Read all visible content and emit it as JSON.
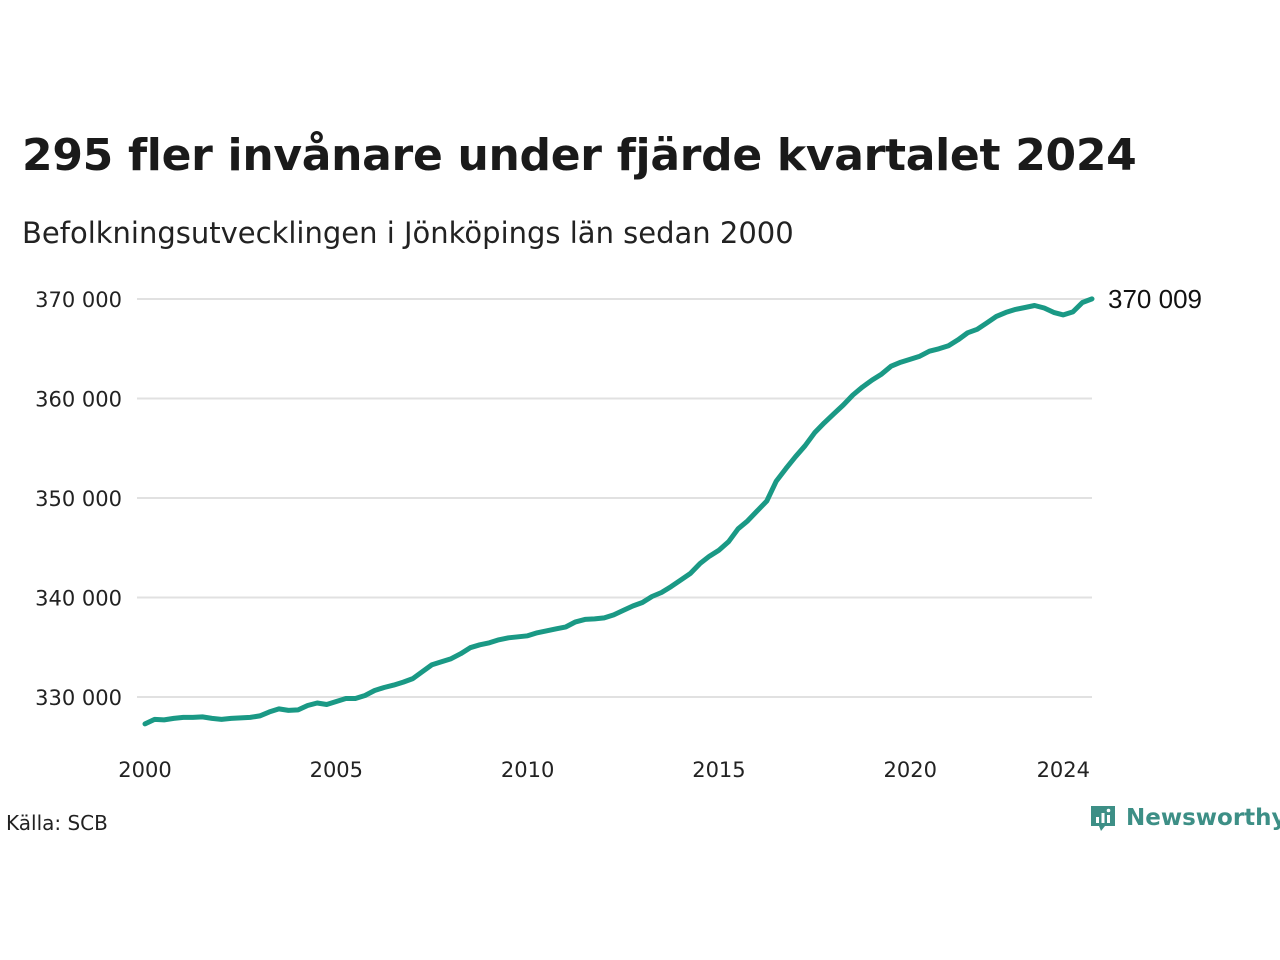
{
  "title": "295 fler invånare under fjärde kvartalet 2024",
  "subtitle": "Befolkningsutvecklingen i Jönköpings län sedan 2000",
  "source": "Källa: SCB",
  "brand": {
    "name": "Newsworthy",
    "icon": "newsworthy-logo-icon",
    "color": "#3d8f86"
  },
  "chart_data": {
    "type": "line",
    "xlim": [
      2000.0,
      2024.75
    ],
    "ylim": [
      325000,
      372000
    ],
    "grid": true,
    "line_color": "#1a9985",
    "y_ticks": [
      {
        "value": 330000,
        "label": "330 000"
      },
      {
        "value": 340000,
        "label": "340 000"
      },
      {
        "value": 350000,
        "label": "350 000"
      },
      {
        "value": 360000,
        "label": "360 000"
      },
      {
        "value": 370000,
        "label": "370 000"
      }
    ],
    "x_ticks": [
      {
        "value": 2000,
        "label": "2000"
      },
      {
        "value": 2005,
        "label": "2005"
      },
      {
        "value": 2010,
        "label": "2010"
      },
      {
        "value": 2015,
        "label": "2015"
      },
      {
        "value": 2020,
        "label": "2020"
      },
      {
        "value": 2024,
        "label": "2024"
      }
    ],
    "end_label": "370 009",
    "series": [
      {
        "x": [
          2000.0,
          2000.25,
          2000.5,
          2000.75,
          2001.0,
          2001.25,
          2001.5,
          2001.75,
          2002.0,
          2002.25,
          2002.5,
          2002.75,
          2003.0,
          2003.25,
          2003.5,
          2003.75,
          2004.0,
          2004.25,
          2004.5,
          2004.75,
          2005.0,
          2005.25,
          2005.5,
          2005.75,
          2006.0,
          2006.25,
          2006.5,
          2006.75,
          2007.0,
          2007.25,
          2007.5,
          2007.75,
          2008.0,
          2008.25,
          2008.5,
          2008.75,
          2009.0,
          2009.25,
          2009.5,
          2009.75,
          2010.0,
          2010.25,
          2010.5,
          2010.75,
          2011.0,
          2011.25,
          2011.5,
          2011.75,
          2012.0,
          2012.25,
          2012.5,
          2012.75,
          2013.0,
          2013.25,
          2013.5,
          2013.75,
          2014.0,
          2014.25,
          2014.5,
          2014.75,
          2015.0,
          2015.25,
          2015.5,
          2015.75,
          2016.0,
          2016.25,
          2016.5,
          2016.75,
          2017.0,
          2017.25,
          2017.5,
          2017.75,
          2018.0,
          2018.25,
          2018.5,
          2018.75,
          2019.0,
          2019.25,
          2019.5,
          2019.75,
          2020.0,
          2020.25,
          2020.5,
          2020.75,
          2021.0,
          2021.25,
          2021.5,
          2021.75,
          2022.0,
          2022.25,
          2022.5,
          2022.75,
          2023.0,
          2023.25,
          2023.5,
          2023.75,
          2024.0,
          2024.25,
          2024.5,
          2024.75
        ],
        "values": [
          327300,
          327750,
          327700,
          327850,
          327950,
          327950,
          328000,
          327850,
          327750,
          327850,
          327900,
          327950,
          328100,
          328500,
          328800,
          328650,
          328700,
          329150,
          329400,
          329250,
          329550,
          329850,
          329850,
          330150,
          330650,
          330950,
          331200,
          331500,
          331850,
          332550,
          333250,
          333550,
          333850,
          334350,
          334950,
          335250,
          335450,
          335750,
          335950,
          336050,
          336150,
          336450,
          336650,
          336850,
          337050,
          337550,
          337800,
          337850,
          337950,
          338250,
          338700,
          339150,
          339500,
          340100,
          340500,
          341100,
          341750,
          342400,
          343400,
          344150,
          344750,
          345600,
          346900,
          347700,
          348700,
          349700,
          351700,
          352950,
          354150,
          355250,
          356550,
          357550,
          358450,
          359350,
          360350,
          361150,
          361850,
          362450,
          363250,
          363650,
          363950,
          364250,
          364750,
          365000,
          365300,
          365900,
          366600,
          366950,
          367600,
          368250,
          368650,
          368950,
          369150,
          369350,
          369100,
          368650,
          368400,
          368700,
          369650,
          370009
        ]
      }
    ]
  }
}
